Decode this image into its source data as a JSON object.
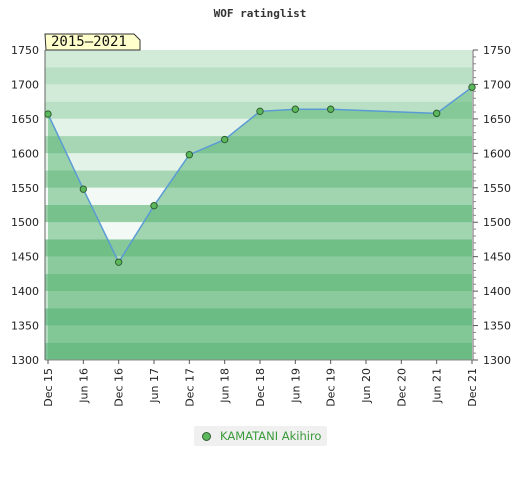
{
  "chart_data": {
    "type": "line",
    "title": "WOF ratinglist",
    "period_badge": "2015–2021",
    "x": [
      "Dec 15",
      "Jun 16",
      "Dec 16",
      "Jun 17",
      "Dec 17",
      "Jun 18",
      "Dec 18",
      "Jun 19",
      "Dec 19",
      "Jun 20",
      "Dec 20",
      "Jun 21",
      "Dec 21"
    ],
    "ylim": [
      1300,
      1750
    ],
    "yticks": [
      1300,
      1350,
      1400,
      1450,
      1500,
      1550,
      1600,
      1650,
      1700,
      1750
    ],
    "series": [
      {
        "name": "KAMATANI Akihiro",
        "points": [
          {
            "x": "Dec 15",
            "y": 1657
          },
          {
            "x": "Jun 16",
            "y": 1548
          },
          {
            "x": "Dec 16",
            "y": 1442
          },
          {
            "x": "Jun 17",
            "y": 1524
          },
          {
            "x": "Dec 17",
            "y": 1598
          },
          {
            "x": "Jun 18",
            "y": 1620
          },
          {
            "x": "Dec 18",
            "y": 1661
          },
          {
            "x": "Jun 19",
            "y": 1664
          },
          {
            "x": "Dec 19",
            "y": 1664
          },
          {
            "x": "Jun 21",
            "y": 1658
          },
          {
            "x": "Dec 21",
            "y": 1696
          }
        ]
      }
    ],
    "legend_position": "bottom",
    "colors": {
      "marker": "#5cb85c",
      "line": "#5a9bd5",
      "band_dark": "#7cc495",
      "band_light": "#e6f4ea"
    }
  }
}
